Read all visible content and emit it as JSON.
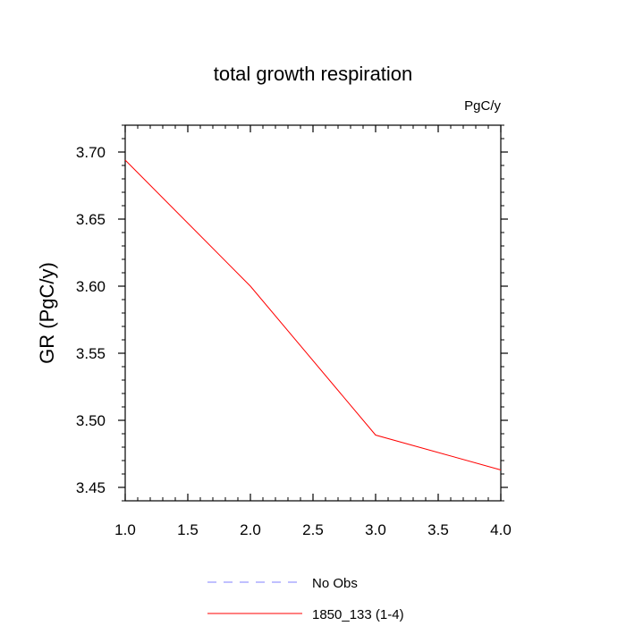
{
  "chart_data": {
    "type": "line",
    "title": "total growth respiration",
    "units_label": "PgC/y",
    "xlabel": "",
    "ylabel": "GR  (PgC/y)",
    "xlim": [
      1.0,
      4.0
    ],
    "ylim": [
      3.44,
      3.72
    ],
    "x_ticks": [
      1.0,
      1.5,
      2.0,
      2.5,
      3.0,
      3.5,
      4.0
    ],
    "x_tick_labels": [
      "1.0",
      "1.5",
      "2.0",
      "2.5",
      "3.0",
      "3.5",
      "4.0"
    ],
    "y_ticks": [
      3.45,
      3.5,
      3.55,
      3.6,
      3.65,
      3.7
    ],
    "y_tick_labels": [
      "3.45",
      "3.50",
      "3.55",
      "3.60",
      "3.65",
      "3.70"
    ],
    "x_minor_step": 0.1,
    "y_minor_step": 0.01,
    "grid": false,
    "legend_position": "bottom-center",
    "series": [
      {
        "name": "1850_133 (1-4)",
        "color": "#ff0000",
        "style": "solid",
        "x": [
          1.0,
          2.0,
          3.0,
          4.0
        ],
        "values": [
          3.694,
          3.6,
          3.489,
          3.463
        ]
      }
    ],
    "legend": [
      {
        "label": "No Obs",
        "color": "#8080ff",
        "style": "dashed"
      },
      {
        "label": "1850_133 (1-4)",
        "color": "#ff0000",
        "style": "solid"
      }
    ]
  }
}
